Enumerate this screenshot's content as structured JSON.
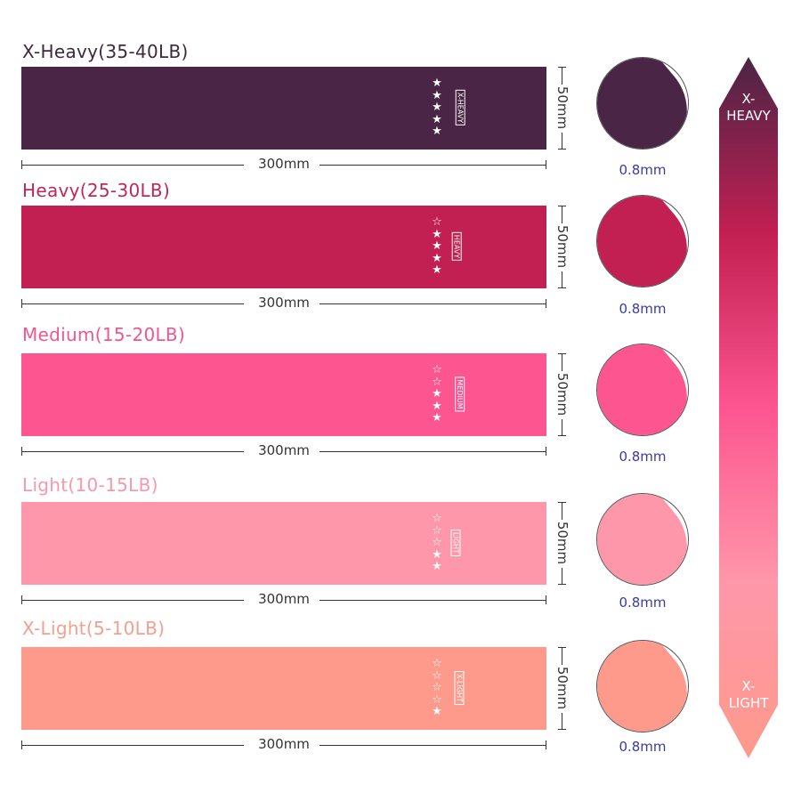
{
  "bands": [
    {
      "title": "X-Heavy(35-40LB)",
      "tag": "X-HEAVY",
      "stars_filled": 5,
      "color": "#4a2545",
      "title_color": "#3e2a3a",
      "width": "300mm",
      "height": "50mm",
      "thickness": "0.8mm"
    },
    {
      "title": "Heavy(25-30LB)",
      "tag": "HEAVY",
      "stars_filled": 4,
      "color": "#c21f52",
      "title_color": "#c0265a",
      "width": "300mm",
      "height": "50mm",
      "thickness": "0.8mm"
    },
    {
      "title": "Medium(15-20LB)",
      "tag": "MEDIUM",
      "stars_filled": 3,
      "color": "#fd5590",
      "title_color": "#ef5790",
      "width": "300mm",
      "height": "50mm",
      "thickness": "0.8mm"
    },
    {
      "title": "Light(10-15LB)",
      "tag": "LIGHT",
      "stars_filled": 2,
      "color": "#fe97a9",
      "title_color": "#f49aac",
      "width": "300mm",
      "height": "50mm",
      "thickness": "0.8mm"
    },
    {
      "title": "X-Light(5-10LB)",
      "tag": "X-LIGHT",
      "stars_filled": 1,
      "color": "#fd9a8b",
      "title_color": "#f3a090",
      "width": "300mm",
      "height": "50mm",
      "thickness": "0.8mm"
    }
  ],
  "scale": {
    "top_label": "X-\nHEAVY",
    "bottom_label": "X-\nLIGHT",
    "top_color": "#4a2545",
    "bottom_color": "#fd9a8b"
  }
}
